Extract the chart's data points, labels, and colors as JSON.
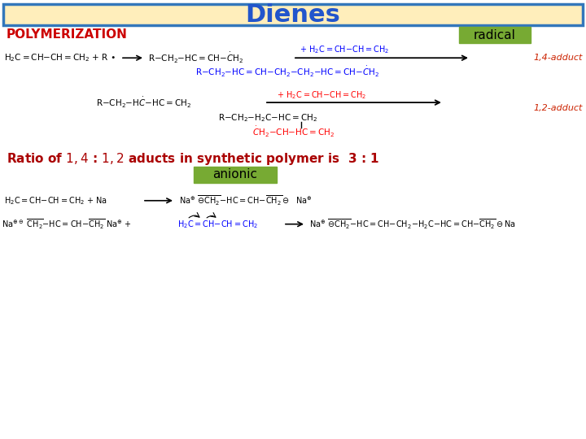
{
  "title": "Dienes",
  "title_bg": "#FFEEBB",
  "title_border": "#3377BB",
  "title_color": "#2255CC",
  "title_fontsize": 22,
  "poly_text": "POLYMERIZATION",
  "poly_color": "#CC0000",
  "poly_fontsize": 11,
  "radical_text": "radical",
  "radical_bg": "#77AA33",
  "radical_color": "#000000",
  "radical_fontsize": 11,
  "adduct14_color": "#CC2200",
  "adduct12_color": "#CC2200",
  "ratio_color": "#AA0000",
  "ratio_fontsize": 11,
  "anionic_text": "anionic",
  "anionic_bg": "#77AA33",
  "anionic_color": "#000000",
  "anionic_fontsize": 11,
  "bg_color": "#FFFFFF",
  "fig_width": 7.2,
  "fig_height": 5.4,
  "dpi": 100
}
